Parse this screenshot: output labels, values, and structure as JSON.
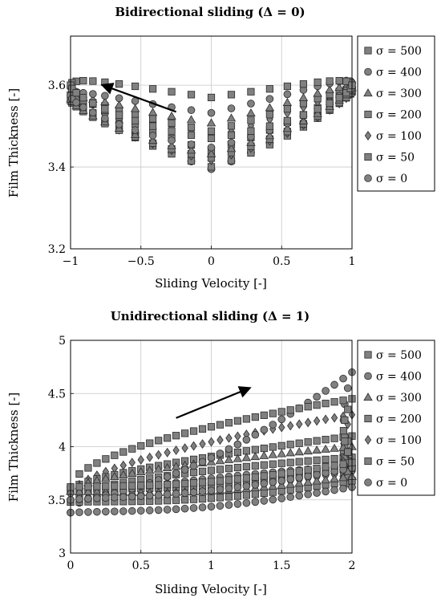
{
  "chart_data": [
    {
      "type": "scatter",
      "title": "Bidirectional sliding (Δ = 0)",
      "xlabel": "Sliding Velocity [-]",
      "ylabel": "Film Thickness [-]",
      "xlim": [
        -1,
        1
      ],
      "ylim": [
        3.2,
        3.72
      ],
      "xticks": [
        -1,
        -0.5,
        0,
        0.5,
        1
      ],
      "xtick_labels": [
        "−1",
        "−0.5",
        "0",
        "0.5",
        "1"
      ],
      "yticks": [
        3.2,
        3.4,
        3.6
      ],
      "ytick_labels": [
        "3.2",
        "3.4",
        "3.6"
      ],
      "grid": true,
      "legend_position": "right",
      "annotation": {
        "type": "arrow",
        "from": [
          -0.25,
          3.535
        ],
        "to": [
          -0.77,
          3.6
        ]
      },
      "series": [
        {
          "name": "σ = 500",
          "marker": "square",
          "loop": {
            "center": 3.52,
            "rise": 0.08,
            "branch_offset": 0.05,
            "branch_phase": 0.0
          }
        },
        {
          "name": "σ = 400",
          "marker": "circle",
          "loop": {
            "center": 3.49,
            "rise": 0.1,
            "branch_offset": 0.045,
            "branch_phase": 0.35
          }
        },
        {
          "name": "σ = 300",
          "marker": "triangle",
          "loop": {
            "center": 3.47,
            "rise": 0.11,
            "branch_offset": 0.04,
            "branch_phase": 0.35
          }
        },
        {
          "name": "σ = 200",
          "marker": "square",
          "loop": {
            "center": 3.455,
            "rise": 0.12,
            "branch_offset": 0.035,
            "branch_phase": 0.35
          }
        },
        {
          "name": "σ = 100",
          "marker": "diamond",
          "loop": {
            "center": 3.445,
            "rise": 0.13,
            "branch_offset": 0.03,
            "branch_phase": 0.3
          }
        },
        {
          "name": "σ = 50",
          "marker": "square",
          "loop": {
            "center": 3.42,
            "rise": 0.16,
            "branch_offset": 0.02,
            "branch_phase": 0.2
          }
        },
        {
          "name": "σ = 0",
          "marker": "circle",
          "loop": {
            "center": 3.395,
            "rise": 0.2,
            "branch_offset": 0.0,
            "branch_phase": 0.0
          }
        }
      ]
    },
    {
      "type": "scatter",
      "title": "Unidirectional sliding (Δ = 1)",
      "xlabel": "Sliding Velocity [-]",
      "ylabel": "Film Thickness [-]",
      "xlim": [
        0,
        2
      ],
      "ylim": [
        3,
        5
      ],
      "xticks": [
        0,
        0.5,
        1,
        1.5,
        2
      ],
      "xtick_labels": [
        "0",
        "0.5",
        "1",
        "1.5",
        "2"
      ],
      "yticks": [
        3,
        3.5,
        4,
        4.5,
        5
      ],
      "ytick_labels": [
        "3",
        "3.5",
        "4",
        "4.5",
        "5"
      ],
      "grid": true,
      "legend_position": "right",
      "annotation": {
        "type": "arrow",
        "from": [
          0.75,
          4.27
        ],
        "to": [
          1.27,
          4.55
        ]
      },
      "series": [
        {
          "name": "σ = 500",
          "marker": "square",
          "loop": {
            "y0": 3.62,
            "upper_end": 4.45,
            "lower_end": 3.85,
            "exp": 0.55
          }
        },
        {
          "name": "σ = 400",
          "marker": "circle",
          "loop": {
            "y0": 3.5,
            "upper_end": 4.7,
            "lower_end": 3.8,
            "exp": 1.6
          }
        },
        {
          "name": "σ = 300",
          "marker": "triangle",
          "loop": {
            "y0": 3.58,
            "upper_end": 4.0,
            "lower_end": 3.72,
            "exp": 0.6
          }
        },
        {
          "name": "σ = 200",
          "marker": "square",
          "loop": {
            "y0": 3.6,
            "upper_end": 4.1,
            "lower_end": 3.8,
            "exp": 0.7
          }
        },
        {
          "name": "σ = 100",
          "marker": "diamond",
          "loop": {
            "y0": 3.55,
            "upper_end": 4.3,
            "lower_end": 3.76,
            "exp": 0.6
          }
        },
        {
          "name": "σ = 50",
          "marker": "square",
          "loop": {
            "y0": 3.48,
            "upper_end": 3.9,
            "lower_end": 3.68,
            "exp": 0.5
          }
        },
        {
          "name": "σ = 0",
          "marker": "circle",
          "loop": {
            "y0": 3.38,
            "upper_end": 3.82,
            "lower_end": 3.62,
            "exp": 0.45
          }
        }
      ]
    }
  ],
  "style": {
    "marker_fill": "#808080",
    "marker_stroke": "#2a2a2a",
    "grid_color": "#c8c8c8",
    "arrow_color": "#000000"
  }
}
